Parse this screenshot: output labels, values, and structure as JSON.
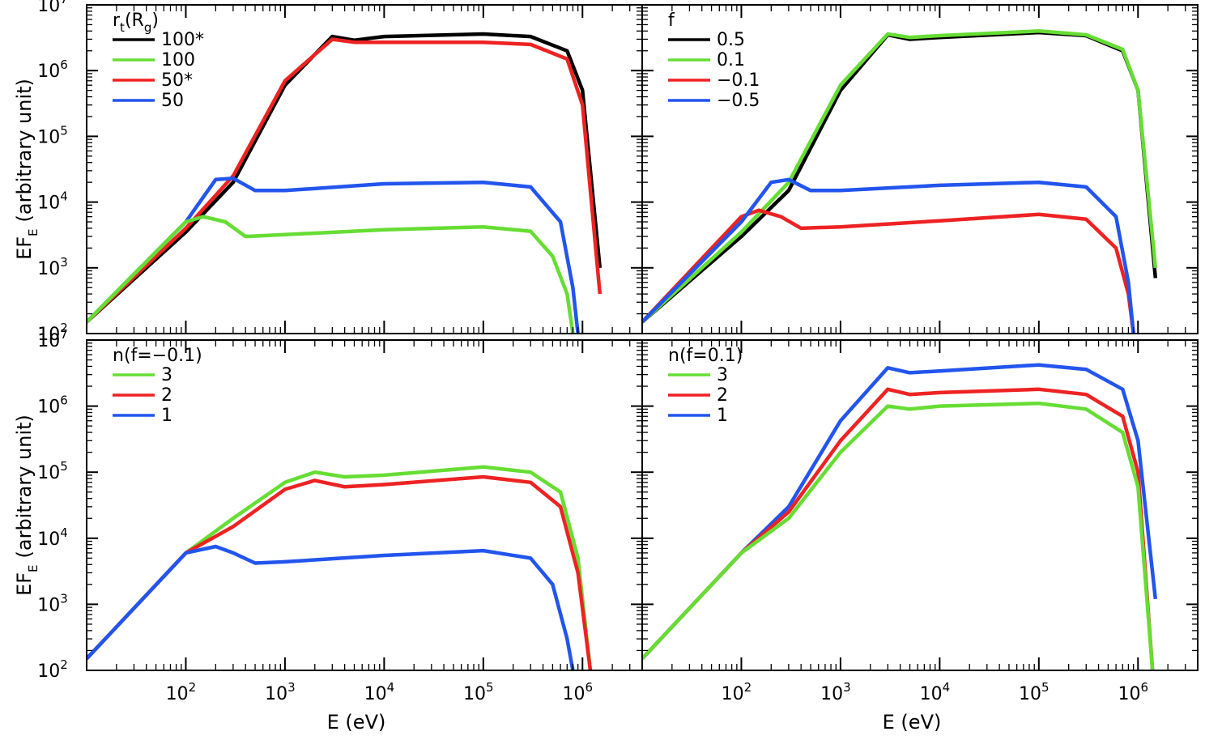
{
  "chart_data": [
    {
      "type": "line",
      "panel": "top-left",
      "ylabel": "EF_E (arbitrary unit)",
      "xlabel": "",
      "xscale": "log",
      "yscale": "log",
      "xlim": [
        10,
        4000000
      ],
      "ylim": [
        100,
        10000000
      ],
      "legend": {
        "title": "r_t(R_g)",
        "placement": "top-left",
        "entries": [
          {
            "label": "100*",
            "color": "#000000"
          },
          {
            "label": "100",
            "color": "#66dd33"
          },
          {
            "label": "50*",
            "color": "#ee2222"
          },
          {
            "label": "50",
            "color": "#2255ee"
          }
        ]
      },
      "series": [
        {
          "name": "100*",
          "color": "#000000",
          "style": "solid",
          "x": [
            10,
            100,
            300,
            1000,
            3000,
            5000,
            10000,
            100000,
            300000,
            700000,
            1000000,
            1500000
          ],
          "y": [
            150,
            3500,
            20000,
            600000,
            3300000,
            2900000,
            3300000,
            3600000,
            3300000,
            2000000,
            500000,
            1000
          ]
        },
        {
          "name": "50*",
          "color": "#ee2222",
          "style": "solid",
          "x": [
            10,
            100,
            300,
            1000,
            3000,
            5000,
            10000,
            100000,
            300000,
            700000,
            1000000,
            1500000
          ],
          "y": [
            150,
            4000,
            25000,
            700000,
            3000000,
            2700000,
            2700000,
            2700000,
            2500000,
            1500000,
            300000,
            400
          ]
        },
        {
          "name": "50",
          "color": "#2255ee",
          "style": "solid",
          "x": [
            10,
            100,
            200,
            300,
            500,
            1000,
            10000,
            100000,
            300000,
            600000,
            800000,
            900000
          ],
          "y": [
            150,
            5000,
            22000,
            23000,
            15000,
            15000,
            19000,
            20000,
            17000,
            5000,
            500,
            100
          ]
        },
        {
          "name": "100",
          "color": "#66dd33",
          "style": "solid",
          "x": [
            10,
            100,
            150,
            250,
            400,
            1000,
            10000,
            100000,
            300000,
            500000,
            700000,
            800000
          ],
          "y": [
            150,
            5000,
            6000,
            5000,
            3000,
            3200,
            3800,
            4200,
            3600,
            1500,
            400,
            100
          ]
        }
      ]
    },
    {
      "type": "line",
      "panel": "top-right",
      "ylabel": "",
      "xlabel": "",
      "xscale": "log",
      "yscale": "log",
      "xlim": [
        10,
        4000000
      ],
      "ylim": [
        100,
        10000000
      ],
      "legend": {
        "title": "f",
        "placement": "top-left",
        "entries": [
          {
            "label": "0.5",
            "color": "#000000"
          },
          {
            "label": "0.1",
            "color": "#66dd33"
          },
          {
            "label": "−0.1",
            "color": "#ee2222"
          },
          {
            "label": "−0.5",
            "color": "#2255ee"
          }
        ]
      },
      "series": [
        {
          "name": "0.5",
          "color": "#000000",
          "style": "solid",
          "x": [
            10,
            100,
            300,
            1000,
            3000,
            5000,
            10000,
            100000,
            300000,
            700000,
            1000000,
            1500000
          ],
          "y": [
            150,
            3000,
            15000,
            500000,
            3500000,
            3000000,
            3200000,
            3800000,
            3400000,
            2000000,
            500000,
            700
          ]
        },
        {
          "name": "0.1",
          "color": "#66dd33",
          "style": "solid",
          "x": [
            10,
            100,
            300,
            1000,
            3000,
            5000,
            10000,
            100000,
            300000,
            700000,
            1000000,
            1500000
          ],
          "y": [
            150,
            3500,
            20000,
            600000,
            3600000,
            3200000,
            3400000,
            4000000,
            3500000,
            2100000,
            500000,
            1000
          ]
        },
        {
          "name": "-0.1",
          "color": "#ee2222",
          "style": "solid",
          "x": [
            10,
            100,
            150,
            250,
            400,
            1000,
            10000,
            100000,
            300000,
            600000,
            800000,
            900000
          ],
          "y": [
            150,
            6000,
            7500,
            6000,
            4000,
            4200,
            5200,
            6500,
            5500,
            2000,
            400,
            100
          ]
        },
        {
          "name": "-0.5",
          "color": "#2255ee",
          "style": "solid",
          "x": [
            10,
            100,
            200,
            300,
            500,
            1000,
            10000,
            100000,
            300000,
            600000,
            800000,
            900000
          ],
          "y": [
            150,
            5000,
            20000,
            22000,
            15000,
            15000,
            18000,
            20000,
            17000,
            6000,
            600,
            100
          ]
        }
      ]
    },
    {
      "type": "line",
      "panel": "bottom-left",
      "ylabel": "EF_E (arbitrary unit)",
      "xlabel": "E (eV)",
      "xscale": "log",
      "yscale": "log",
      "xlim": [
        10,
        4000000
      ],
      "ylim": [
        100,
        10000000
      ],
      "legend": {
        "title": "n(f=−0.1)",
        "placement": "top-left",
        "entries": [
          {
            "label": "3",
            "color": "#66dd33"
          },
          {
            "label": "2",
            "color": "#ee2222"
          },
          {
            "label": "1",
            "color": "#2255ee"
          }
        ]
      },
      "series": [
        {
          "name": "3",
          "color": "#66dd33",
          "style": "solid",
          "x": [
            10,
            100,
            300,
            1000,
            2000,
            4000,
            10000,
            100000,
            300000,
            600000,
            900000,
            1200000
          ],
          "y": [
            150,
            6000,
            20000,
            70000,
            100000,
            85000,
            90000,
            120000,
            100000,
            50000,
            5000,
            100
          ]
        },
        {
          "name": "2",
          "color": "#ee2222",
          "style": "solid",
          "x": [
            10,
            100,
            300,
            1000,
            2000,
            4000,
            10000,
            100000,
            300000,
            600000,
            900000,
            1200000
          ],
          "y": [
            150,
            6000,
            15000,
            55000,
            75000,
            60000,
            65000,
            85000,
            70000,
            30000,
            3000,
            100
          ]
        },
        {
          "name": "1",
          "color": "#2255ee",
          "style": "solid",
          "x": [
            10,
            100,
            200,
            300,
            500,
            1000,
            10000,
            100000,
            300000,
            500000,
            700000,
            800000
          ],
          "y": [
            150,
            6000,
            7500,
            6000,
            4200,
            4400,
            5500,
            6500,
            5000,
            2000,
            300,
            100
          ]
        }
      ]
    },
    {
      "type": "line",
      "panel": "bottom-right",
      "ylabel": "",
      "xlabel": "E (eV)",
      "xscale": "log",
      "yscale": "log",
      "xlim": [
        10,
        4000000
      ],
      "ylim": [
        100,
        10000000
      ],
      "legend": {
        "title": "n(f=0.1)",
        "placement": "top-left",
        "entries": [
          {
            "label": "3",
            "color": "#66dd33"
          },
          {
            "label": "2",
            "color": "#ee2222"
          },
          {
            "label": "1",
            "color": "#2255ee"
          }
        ]
      },
      "series": [
        {
          "name": "1",
          "color": "#2255ee",
          "style": "solid",
          "x": [
            10,
            100,
            300,
            1000,
            3000,
            5000,
            10000,
            100000,
            300000,
            700000,
            1000000,
            1500000
          ],
          "y": [
            150,
            6000,
            30000,
            600000,
            3800000,
            3200000,
            3400000,
            4200000,
            3600000,
            1800000,
            300000,
            1200
          ]
        },
        {
          "name": "2",
          "color": "#ee2222",
          "style": "solid",
          "x": [
            10,
            100,
            300,
            1000,
            3000,
            5000,
            10000,
            100000,
            300000,
            700000,
            1000000,
            1400000
          ],
          "y": [
            150,
            6000,
            25000,
            300000,
            1800000,
            1500000,
            1600000,
            1800000,
            1500000,
            700000,
            100000,
            100
          ]
        },
        {
          "name": "3",
          "color": "#66dd33",
          "style": "solid",
          "x": [
            10,
            100,
            300,
            1000,
            3000,
            5000,
            10000,
            100000,
            300000,
            700000,
            1000000,
            1400000
          ],
          "y": [
            150,
            6000,
            20000,
            200000,
            1000000,
            900000,
            1000000,
            1100000,
            900000,
            400000,
            60000,
            100
          ]
        }
      ]
    }
  ],
  "axis": {
    "x_ticks": [
      {
        "base": "10",
        "exp": "2",
        "value": 100
      },
      {
        "base": "10",
        "exp": "3",
        "value": 1000
      },
      {
        "base": "10",
        "exp": "4",
        "value": 10000
      },
      {
        "base": "10",
        "exp": "5",
        "value": 100000
      },
      {
        "base": "10",
        "exp": "6",
        "value": 1000000
      }
    ],
    "y_ticks": [
      {
        "base": "10",
        "exp": "2",
        "value": 100
      },
      {
        "base": "10",
        "exp": "3",
        "value": 1000
      },
      {
        "base": "10",
        "exp": "4",
        "value": 10000
      },
      {
        "base": "10",
        "exp": "5",
        "value": 100000
      },
      {
        "base": "10",
        "exp": "6",
        "value": 1000000
      },
      {
        "base": "10",
        "exp": "7",
        "value": 10000000
      }
    ],
    "ylabel_main": "EF",
    "ylabel_sub": "E",
    "ylabel_rest": "(arbitrary unit)",
    "xlabel": "E (eV)"
  }
}
